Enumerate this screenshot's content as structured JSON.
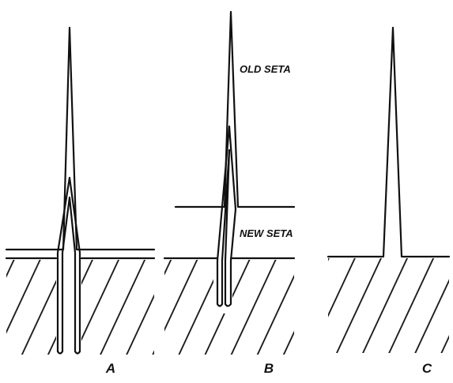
{
  "labels": {
    "old_seta": "OLD SETA",
    "new_seta": "NEW SETA"
  },
  "panels": [
    "A",
    "B",
    "C"
  ]
}
